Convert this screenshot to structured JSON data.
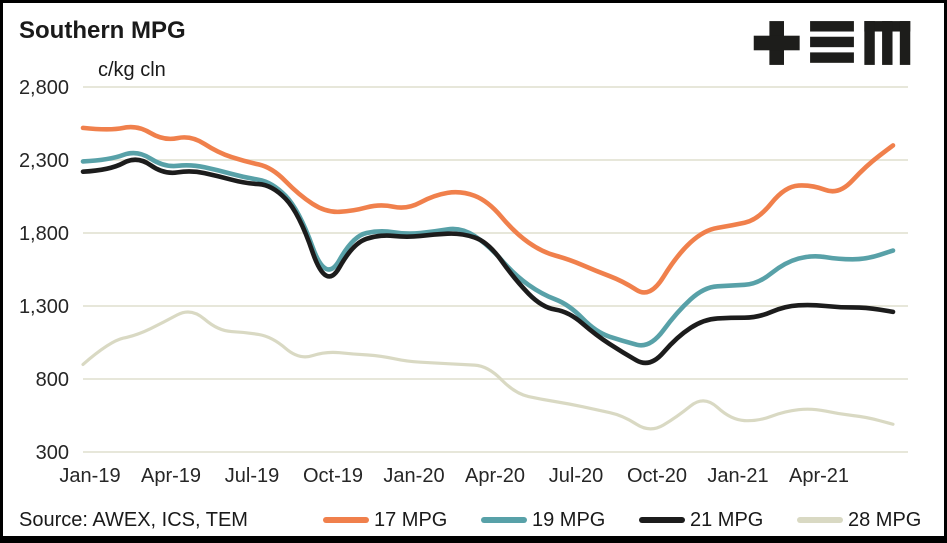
{
  "header": {
    "title": "Southern MPG",
    "unit": "c/kg cln"
  },
  "logo": {
    "name": "TEM",
    "color": "#1d1d1b"
  },
  "source": {
    "text": "Source: AWEX, ICS, TEM"
  },
  "colors": {
    "background": "#ffffff",
    "frame": "#000000",
    "gridline": "#e7e7da",
    "axis_text": "#262626",
    "series_17mpg": "#f0804c",
    "series_19mpg": "#58a1a8",
    "series_21mpg": "#1c1c1c",
    "series_28mpg": "#d9d9c3"
  },
  "chart_data": {
    "type": "line",
    "title": "Southern MPG",
    "ylabel": "c/kg cln",
    "xlabel": "",
    "ylim": [
      300,
      2800
    ],
    "grid": "horizontal",
    "legend_position": "bottom",
    "y_ticks": [
      {
        "value": 300,
        "label": "300"
      },
      {
        "value": 800,
        "label": "800"
      },
      {
        "value": 1300,
        "label": "1,300"
      },
      {
        "value": 1800,
        "label": "1,800"
      },
      {
        "value": 2300,
        "label": "2,300"
      },
      {
        "value": 2800,
        "label": "2,800"
      }
    ],
    "x": [
      "Jan-19",
      "Feb-19",
      "Mar-19",
      "Apr-19",
      "May-19",
      "Jun-19",
      "Jul-19",
      "Aug-19",
      "Sep-19",
      "Oct-19",
      "Nov-19",
      "Dec-19",
      "Jan-20",
      "Feb-20",
      "Mar-20",
      "Apr-20",
      "May-20",
      "Jun-20",
      "Jul-20",
      "Aug-20",
      "Sep-20",
      "Oct-20",
      "Nov-20",
      "Dec-20",
      "Jan-21",
      "Feb-21",
      "Mar-21",
      "Apr-21",
      "May-21",
      "Jun-21",
      "Jul-21"
    ],
    "x_tick_months": [
      0,
      3,
      6,
      9,
      12,
      15,
      18,
      21,
      24,
      27
    ],
    "x_tick_labels": [
      "Jan-19",
      "Apr-19",
      "Jul-19",
      "Oct-19",
      "Jan-20",
      "Apr-20",
      "Jul-20",
      "Oct-20",
      "Jan-21",
      "Apr-21"
    ],
    "series": [
      {
        "name": "17 MPG",
        "color": "#f0804c",
        "values": [
          2520,
          2500,
          2540,
          2430,
          2470,
          2350,
          2290,
          2250,
          2060,
          1940,
          1950,
          2000,
          1960,
          2060,
          2090,
          2020,
          1800,
          1670,
          1620,
          1540,
          1470,
          1350,
          1650,
          1820,
          1850,
          1890,
          2120,
          2130,
          2060,
          2260,
          2400
        ]
      },
      {
        "name": "19 MPG",
        "color": "#58a1a8",
        "values": [
          2290,
          2300,
          2370,
          2250,
          2270,
          2230,
          2180,
          2150,
          1960,
          1450,
          1780,
          1820,
          1790,
          1810,
          1840,
          1720,
          1510,
          1380,
          1310,
          1120,
          1060,
          1010,
          1260,
          1430,
          1440,
          1450,
          1600,
          1650,
          1620,
          1620,
          1680
        ]
      },
      {
        "name": "21 MPG",
        "color": "#1c1c1c",
        "values": [
          2220,
          2230,
          2330,
          2200,
          2230,
          2190,
          2140,
          2130,
          1940,
          1400,
          1730,
          1790,
          1770,
          1790,
          1800,
          1740,
          1480,
          1290,
          1260,
          1100,
          980,
          875,
          1090,
          1210,
          1220,
          1220,
          1300,
          1310,
          1290,
          1290,
          1260
        ]
      },
      {
        "name": "28 MPG",
        "color": "#d9d9c3",
        "values": [
          900,
          1060,
          1100,
          1190,
          1290,
          1130,
          1120,
          1090,
          930,
          990,
          970,
          960,
          920,
          910,
          900,
          890,
          700,
          660,
          630,
          590,
          550,
          430,
          540,
          690,
          520,
          510,
          580,
          600,
          560,
          540,
          490
        ]
      }
    ]
  }
}
